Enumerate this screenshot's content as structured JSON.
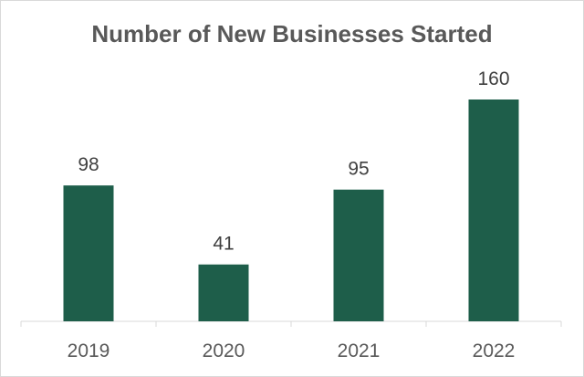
{
  "chart_data": {
    "type": "bar",
    "title": "Number of New Businesses Started",
    "categories": [
      "2019",
      "2020",
      "2021",
      "2022"
    ],
    "values": [
      98,
      41,
      95,
      160
    ],
    "xlabel": "",
    "ylabel": "",
    "ylim": [
      0,
      180
    ],
    "grid": false,
    "legend": "none",
    "data_labels": true,
    "colors": {
      "bar": "#1e5e4a",
      "axis": "#d9d9d9",
      "title": "#595959"
    }
  }
}
